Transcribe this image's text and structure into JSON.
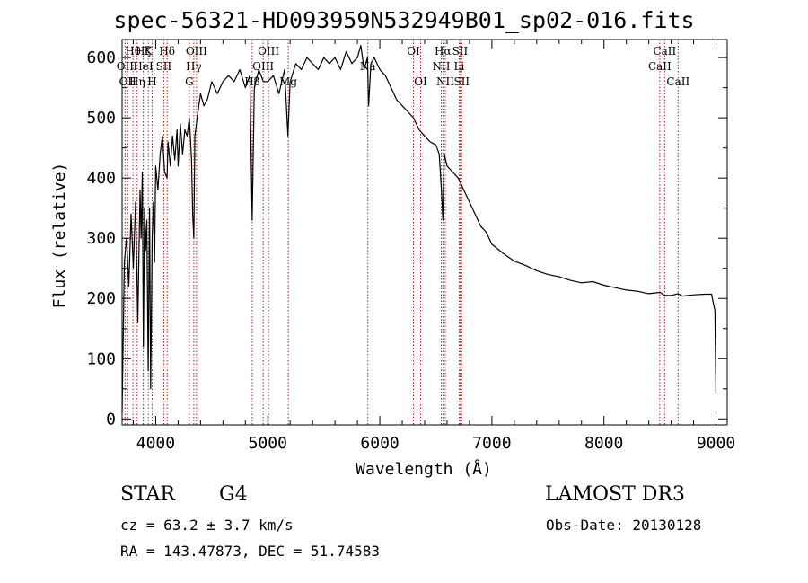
{
  "title": "spec-56321-HD093959N532949B01_sp02-016.fits",
  "info": {
    "obj_class": "STAR",
    "subclass": "G4",
    "survey": "LAMOST DR3",
    "cz": "cz = 63.2 ± 3.7 km/s",
    "obs_date": "Obs-Date: 20130128",
    "radec": "RA = 143.47873, DEC =  51.74583"
  },
  "colors": {
    "line": "#000000",
    "marker": "#b22222",
    "axis": "#000000"
  },
  "chart_data": {
    "type": "line",
    "xlabel": "Wavelength (Å)",
    "ylabel": "Flux (relative)",
    "xlim": [
      3700,
      9100
    ],
    "ylim": [
      -10,
      630
    ],
    "xticks": [
      4000,
      5000,
      6000,
      7000,
      8000,
      9000
    ],
    "yticks": [
      0,
      100,
      200,
      300,
      400,
      500,
      600
    ],
    "series": [
      {
        "name": "flux",
        "x": [
          3700,
          3720,
          3740,
          3760,
          3780,
          3800,
          3820,
          3840,
          3860,
          3870,
          3880,
          3890,
          3900,
          3910,
          3920,
          3933,
          3945,
          3955,
          3968,
          3980,
          3990,
          4000,
          4020,
          4040,
          4060,
          4080,
          4101,
          4110,
          4130,
          4150,
          4170,
          4190,
          4200,
          4220,
          4240,
          4260,
          4280,
          4300,
          4320,
          4330,
          4340,
          4350,
          4370,
          4400,
          4430,
          4460,
          4500,
          4550,
          4600,
          4650,
          4700,
          4750,
          4800,
          4840,
          4861,
          4880,
          4920,
          4960,
          5000,
          5050,
          5100,
          5150,
          5180,
          5200,
          5250,
          5300,
          5350,
          5400,
          5450,
          5500,
          5550,
          5600,
          5650,
          5700,
          5750,
          5800,
          5830,
          5860,
          5890,
          5900,
          5920,
          5950,
          6000,
          6050,
          6100,
          6150,
          6200,
          6250,
          6300,
          6350,
          6400,
          6450,
          6500,
          6530,
          6550,
          6563,
          6575,
          6600,
          6650,
          6700,
          6750,
          6800,
          6850,
          6900,
          6950,
          7000,
          7100,
          7200,
          7300,
          7400,
          7500,
          7600,
          7700,
          7800,
          7900,
          8000,
          8100,
          8200,
          8300,
          8400,
          8500,
          8542,
          8600,
          8662,
          8700,
          8800,
          8900,
          8960,
          8990,
          9000
        ],
        "y": [
          10,
          260,
          300,
          220,
          340,
          250,
          360,
          160,
          380,
          300,
          410,
          120,
          350,
          280,
          330,
          80,
          350,
          50,
          300,
          360,
          260,
          420,
          380,
          440,
          470,
          410,
          400,
          460,
          420,
          470,
          430,
          480,
          420,
          490,
          440,
          480,
          470,
          500,
          430,
          340,
          300,
          470,
          500,
          540,
          520,
          530,
          560,
          540,
          560,
          570,
          560,
          580,
          550,
          570,
          330,
          550,
          580,
          560,
          560,
          570,
          540,
          580,
          470,
          560,
          590,
          580,
          600,
          590,
          580,
          600,
          590,
          600,
          580,
          610,
          590,
          600,
          620,
          580,
          600,
          520,
          590,
          600,
          580,
          570,
          550,
          530,
          520,
          510,
          500,
          480,
          470,
          460,
          455,
          440,
          380,
          330,
          440,
          420,
          410,
          400,
          380,
          360,
          340,
          320,
          310,
          290,
          275,
          262,
          255,
          246,
          240,
          236,
          230,
          226,
          228,
          222,
          218,
          214,
          212,
          208,
          210,
          205,
          205,
          208,
          204,
          206,
          207,
          207,
          180,
          40
        ]
      }
    ],
    "line_markers": [
      {
        "wavelength": 3727,
        "label": "OII",
        "row": 2
      },
      {
        "wavelength": 3750,
        "label": "OII",
        "row": 3
      },
      {
        "wavelength": 3797,
        "label": "Hθ",
        "row": 1
      },
      {
        "wavelength": 3835,
        "label": "Hη",
        "row": 3
      },
      {
        "wavelength": 3889,
        "label": "HeI",
        "row": 2
      },
      {
        "wavelength": 3889,
        "label": "Hζ",
        "row": 1
      },
      {
        "wavelength": 3934,
        "label": "K",
        "row": 1
      },
      {
        "wavelength": 3968,
        "label": "H",
        "row": 3
      },
      {
        "wavelength": 4072,
        "label": "SII",
        "row": 2
      },
      {
        "wavelength": 4102,
        "label": "Hδ",
        "row": 1
      },
      {
        "wavelength": 4300,
        "label": "G",
        "row": 3
      },
      {
        "wavelength": 4340,
        "label": "Hγ",
        "row": 2
      },
      {
        "wavelength": 4364,
        "label": "OIII",
        "row": 1
      },
      {
        "wavelength": 4861,
        "label": "Hβ",
        "row": 3
      },
      {
        "wavelength": 4959,
        "label": "OIII",
        "row": 2
      },
      {
        "wavelength": 5007,
        "label": "OIII",
        "row": 1
      },
      {
        "wavelength": 5183,
        "label": "Mg",
        "row": 3
      },
      {
        "wavelength": 5893,
        "label": "Na",
        "row": 2
      },
      {
        "wavelength": 6300,
        "label": "OI",
        "row": 1
      },
      {
        "wavelength": 6364,
        "label": "OI",
        "row": 3
      },
      {
        "wavelength": 6548,
        "label": "NII",
        "row": 2
      },
      {
        "wavelength": 6563,
        "label": "Hα",
        "row": 1
      },
      {
        "wavelength": 6584,
        "label": "NII",
        "row": 3
      },
      {
        "wavelength": 6708,
        "label": "Li",
        "row": 2
      },
      {
        "wavelength": 6716,
        "label": "SII",
        "row": 1
      },
      {
        "wavelength": 6731,
        "label": "SII",
        "row": 3
      },
      {
        "wavelength": 8498,
        "label": "CaII",
        "row": 2
      },
      {
        "wavelength": 8542,
        "label": "CaII",
        "row": 1
      },
      {
        "wavelength": 8662,
        "label": "CaII",
        "row": 3
      }
    ]
  }
}
